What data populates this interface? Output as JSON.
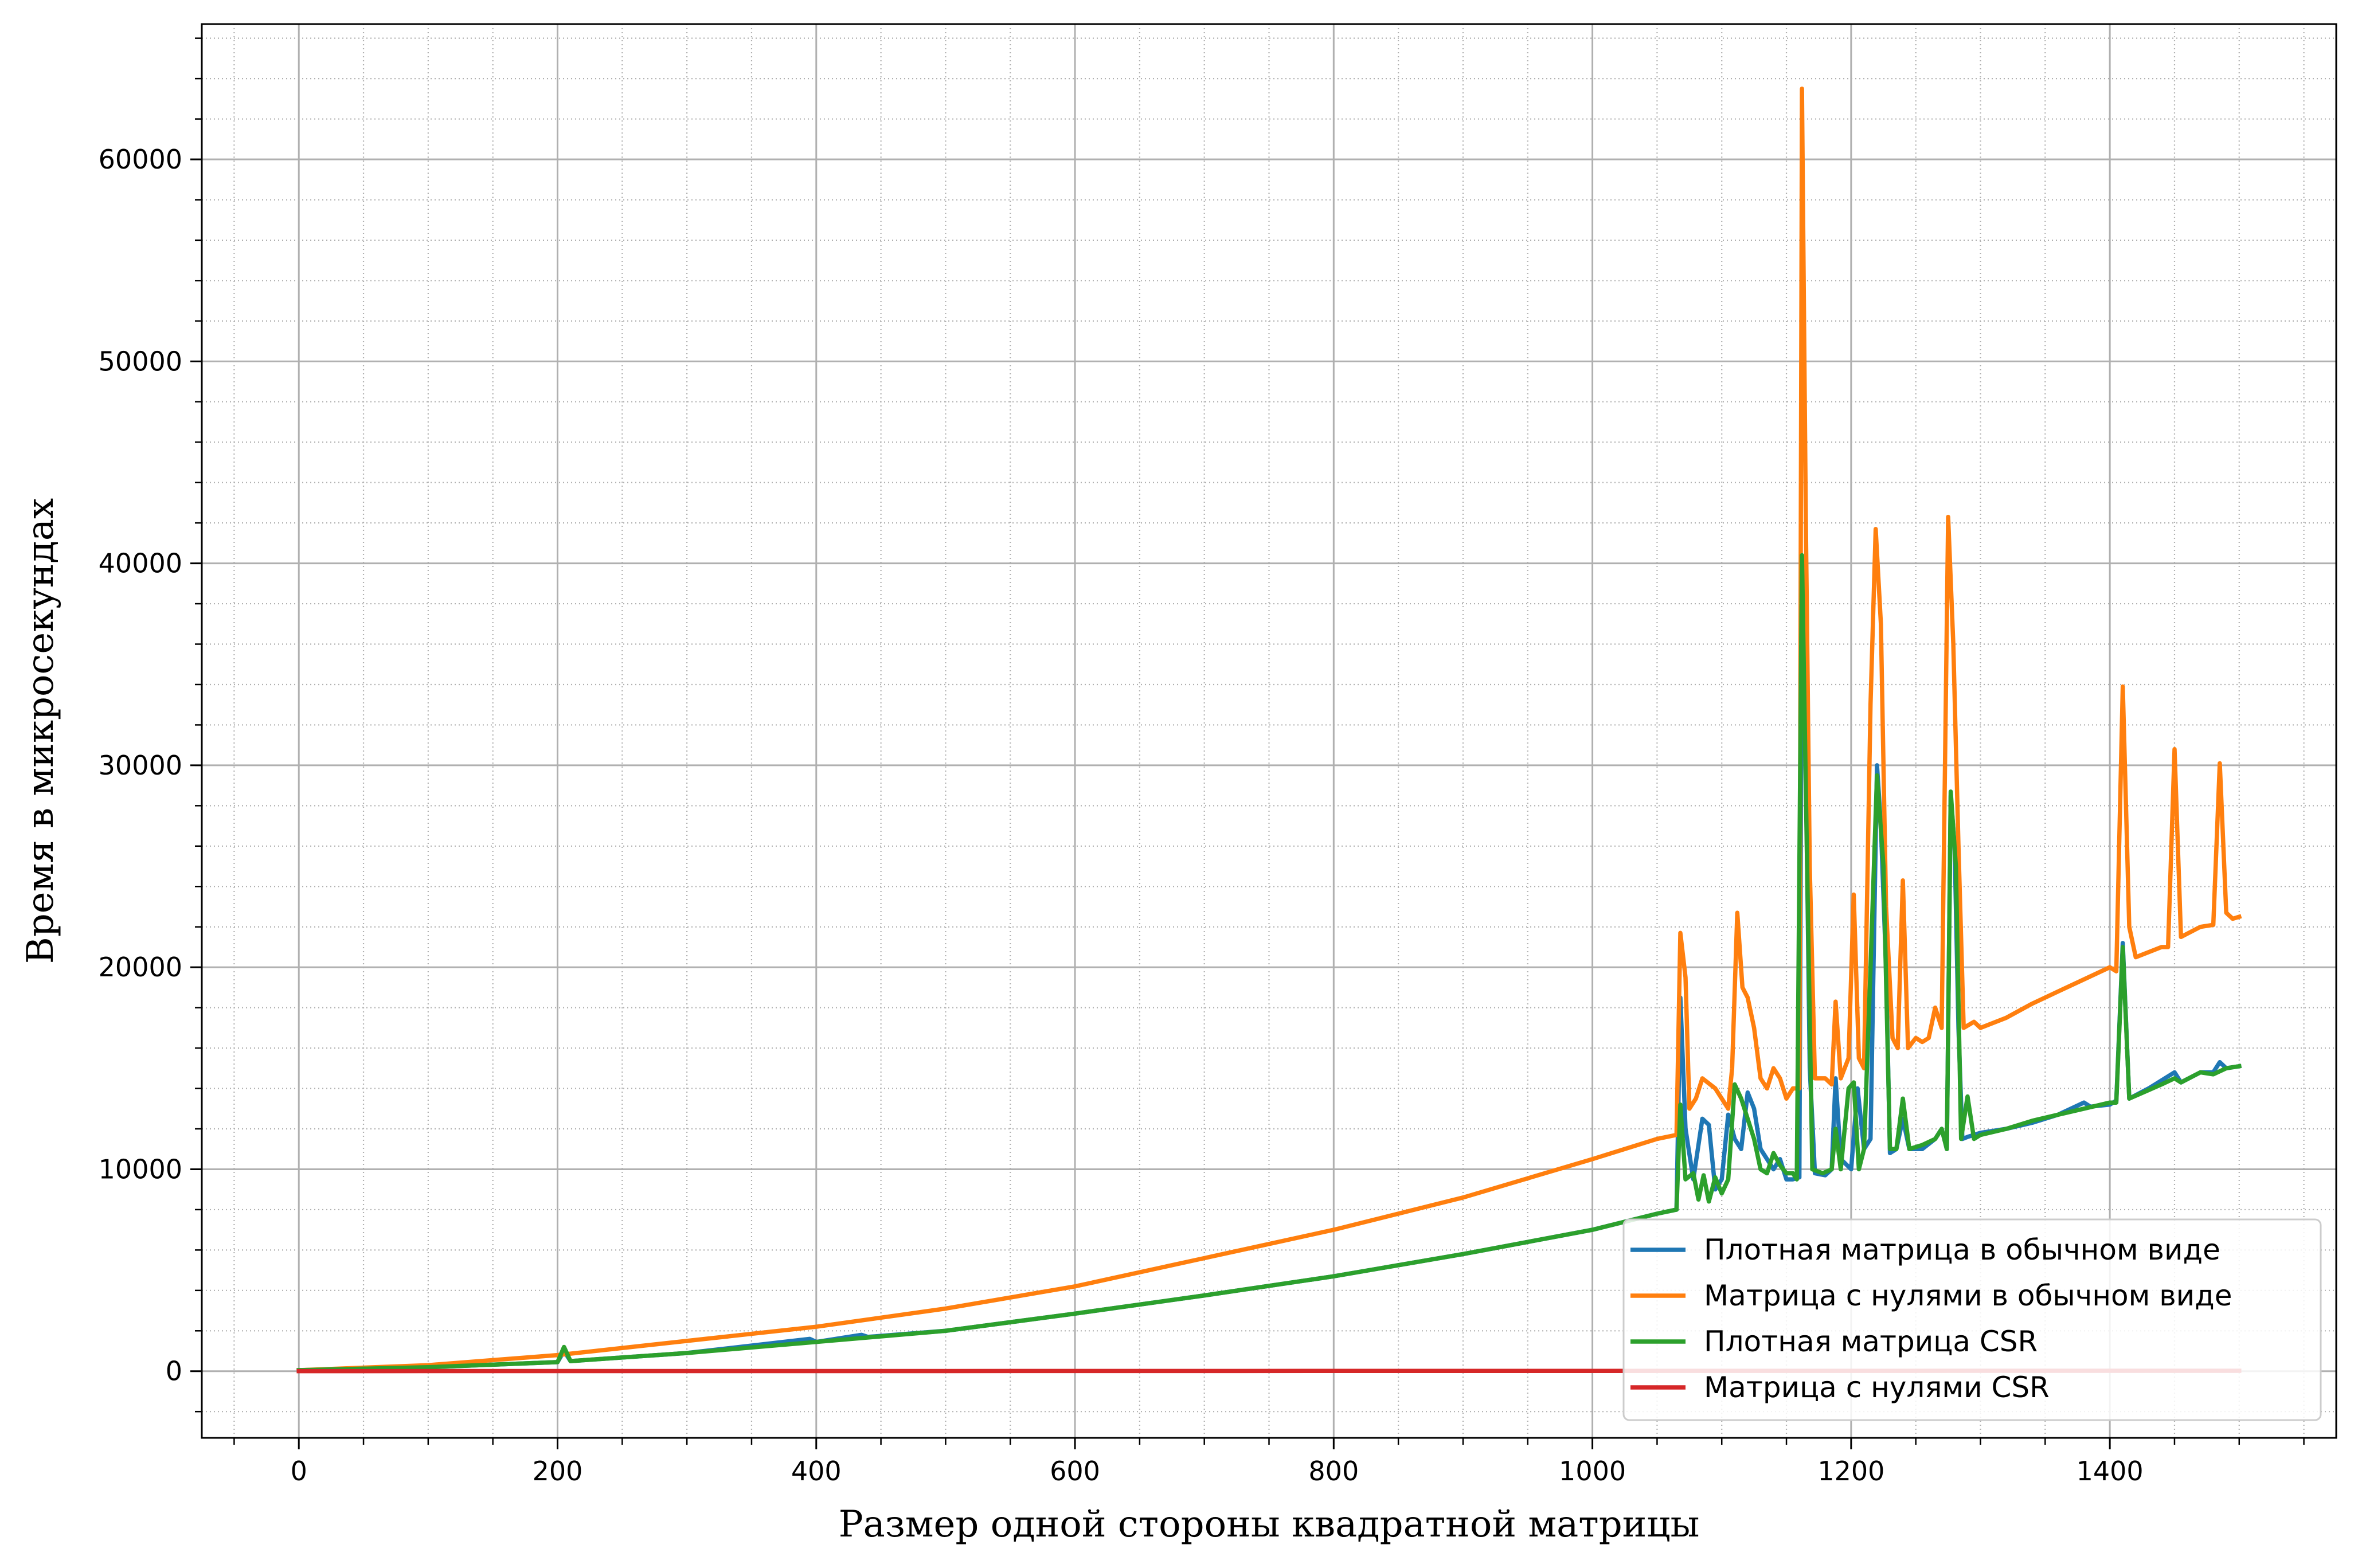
{
  "chart_data": {
    "type": "line",
    "xlabel": "Размер одной стороны квадратной матрицы",
    "ylabel": "Время в микросекундах",
    "xlim": [
      -75,
      1575
    ],
    "ylim": [
      -3300,
      66700
    ],
    "x_major_ticks": [
      0,
      200,
      400,
      600,
      800,
      1000,
      1200,
      1400
    ],
    "x_tick_labels": [
      "0",
      "200",
      "400",
      "600",
      "800",
      "1000",
      "1200",
      "1400"
    ],
    "x_minor_step": 50,
    "y_major_ticks": [
      0,
      10000,
      20000,
      30000,
      40000,
      50000,
      60000
    ],
    "y_tick_labels": [
      "0",
      "10000",
      "20000",
      "30000",
      "40000",
      "50000",
      "60000"
    ],
    "y_minor_step": 2000,
    "grid": {
      "major": "solid",
      "minor": "dotted"
    },
    "legend_position": "bottom-right",
    "series": [
      {
        "name": "Плотная матрица в обычном виде",
        "color": "#1f77b4",
        "points": [
          [
            0,
            50
          ],
          [
            100,
            200
          ],
          [
            200,
            450
          ],
          [
            205,
            1000
          ],
          [
            210,
            500
          ],
          [
            300,
            900
          ],
          [
            395,
            1600
          ],
          [
            400,
            1450
          ],
          [
            435,
            1800
          ],
          [
            440,
            1700
          ],
          [
            500,
            2000
          ],
          [
            600,
            2850
          ],
          [
            700,
            3750
          ],
          [
            800,
            4700
          ],
          [
            900,
            5800
          ],
          [
            1000,
            7000
          ],
          [
            1050,
            7800
          ],
          [
            1065,
            8000
          ],
          [
            1068,
            18500
          ],
          [
            1072,
            12000
          ],
          [
            1078,
            9500
          ],
          [
            1085,
            12500
          ],
          [
            1090,
            12200
          ],
          [
            1095,
            9000
          ],
          [
            1100,
            9500
          ],
          [
            1105,
            12700
          ],
          [
            1110,
            11500
          ],
          [
            1115,
            11000
          ],
          [
            1120,
            13800
          ],
          [
            1125,
            13000
          ],
          [
            1130,
            11000
          ],
          [
            1135,
            10500
          ],
          [
            1140,
            10000
          ],
          [
            1145,
            10500
          ],
          [
            1150,
            9500
          ],
          [
            1155,
            9500
          ],
          [
            1160,
            9600
          ],
          [
            1162,
            40000
          ],
          [
            1165,
            30000
          ],
          [
            1168,
            15000
          ],
          [
            1172,
            9800
          ],
          [
            1180,
            9700
          ],
          [
            1185,
            10000
          ],
          [
            1188,
            14500
          ],
          [
            1192,
            10500
          ],
          [
            1200,
            10000
          ],
          [
            1205,
            14000
          ],
          [
            1210,
            11000
          ],
          [
            1215,
            11500
          ],
          [
            1220,
            30000
          ],
          [
            1223,
            27000
          ],
          [
            1227,
            20000
          ],
          [
            1230,
            10800
          ],
          [
            1235,
            11000
          ],
          [
            1240,
            12500
          ],
          [
            1245,
            11000
          ],
          [
            1255,
            11000
          ],
          [
            1265,
            11500
          ],
          [
            1270,
            12000
          ],
          [
            1274,
            11000
          ],
          [
            1277,
            28500
          ],
          [
            1280,
            26000
          ],
          [
            1283,
            17000
          ],
          [
            1286,
            11500
          ],
          [
            1290,
            11600
          ],
          [
            1300,
            11800
          ],
          [
            1320,
            12000
          ],
          [
            1340,
            12300
          ],
          [
            1360,
            12700
          ],
          [
            1380,
            13300
          ],
          [
            1385,
            13100
          ],
          [
            1400,
            13200
          ],
          [
            1405,
            13400
          ],
          [
            1410,
            21200
          ],
          [
            1415,
            13500
          ],
          [
            1430,
            14000
          ],
          [
            1450,
            14800
          ],
          [
            1455,
            14300
          ],
          [
            1470,
            14800
          ],
          [
            1480,
            14800
          ],
          [
            1485,
            15300
          ],
          [
            1490,
            15000
          ],
          [
            1500,
            15100
          ]
        ]
      },
      {
        "name": "Матрица с нулями в обычном виде",
        "color": "#ff7f0e",
        "points": [
          [
            0,
            50
          ],
          [
            100,
            300
          ],
          [
            200,
            800
          ],
          [
            300,
            1500
          ],
          [
            400,
            2200
          ],
          [
            500,
            3100
          ],
          [
            600,
            4200
          ],
          [
            700,
            5600
          ],
          [
            800,
            7000
          ],
          [
            900,
            8600
          ],
          [
            1000,
            10500
          ],
          [
            1050,
            11500
          ],
          [
            1065,
            11700
          ],
          [
            1068,
            21700
          ],
          [
            1072,
            19500
          ],
          [
            1075,
            13000
          ],
          [
            1080,
            13500
          ],
          [
            1085,
            14500
          ],
          [
            1095,
            14000
          ],
          [
            1100,
            13500
          ],
          [
            1105,
            13000
          ],
          [
            1108,
            15000
          ],
          [
            1112,
            22700
          ],
          [
            1116,
            19000
          ],
          [
            1120,
            18500
          ],
          [
            1125,
            17000
          ],
          [
            1130,
            14500
          ],
          [
            1135,
            14000
          ],
          [
            1140,
            15000
          ],
          [
            1145,
            14500
          ],
          [
            1150,
            13500
          ],
          [
            1155,
            14000
          ],
          [
            1160,
            14000
          ],
          [
            1162,
            63500
          ],
          [
            1165,
            42000
          ],
          [
            1168,
            25000
          ],
          [
            1172,
            14500
          ],
          [
            1180,
            14500
          ],
          [
            1185,
            14200
          ],
          [
            1188,
            18300
          ],
          [
            1192,
            14500
          ],
          [
            1198,
            15500
          ],
          [
            1202,
            23600
          ],
          [
            1206,
            15500
          ],
          [
            1210,
            15000
          ],
          [
            1215,
            33000
          ],
          [
            1219,
            41700
          ],
          [
            1223,
            37000
          ],
          [
            1227,
            23000
          ],
          [
            1232,
            16500
          ],
          [
            1236,
            16000
          ],
          [
            1240,
            24300
          ],
          [
            1244,
            16000
          ],
          [
            1250,
            16500
          ],
          [
            1255,
            16300
          ],
          [
            1260,
            16500
          ],
          [
            1265,
            18000
          ],
          [
            1270,
            17000
          ],
          [
            1275,
            42300
          ],
          [
            1279,
            36000
          ],
          [
            1283,
            26000
          ],
          [
            1287,
            17000
          ],
          [
            1295,
            17300
          ],
          [
            1300,
            17000
          ],
          [
            1320,
            17500
          ],
          [
            1340,
            18200
          ],
          [
            1360,
            18800
          ],
          [
            1380,
            19400
          ],
          [
            1400,
            20000
          ],
          [
            1405,
            19800
          ],
          [
            1410,
            33900
          ],
          [
            1415,
            22000
          ],
          [
            1420,
            20500
          ],
          [
            1440,
            21000
          ],
          [
            1445,
            21000
          ],
          [
            1450,
            30800
          ],
          [
            1455,
            21500
          ],
          [
            1470,
            22000
          ],
          [
            1480,
            22100
          ],
          [
            1485,
            30100
          ],
          [
            1490,
            22700
          ],
          [
            1495,
            22400
          ],
          [
            1500,
            22500
          ]
        ]
      },
      {
        "name": "Плотная матрица CSR",
        "color": "#2ca02c",
        "points": [
          [
            0,
            50
          ],
          [
            100,
            200
          ],
          [
            200,
            450
          ],
          [
            205,
            1200
          ],
          [
            210,
            500
          ],
          [
            300,
            900
          ],
          [
            400,
            1450
          ],
          [
            500,
            2000
          ],
          [
            600,
            2850
          ],
          [
            700,
            3750
          ],
          [
            800,
            4700
          ],
          [
            900,
            5800
          ],
          [
            1000,
            7000
          ],
          [
            1050,
            7800
          ],
          [
            1065,
            8000
          ],
          [
            1068,
            13200
          ],
          [
            1072,
            9500
          ],
          [
            1078,
            9800
          ],
          [
            1082,
            8500
          ],
          [
            1086,
            9700
          ],
          [
            1090,
            8400
          ],
          [
            1095,
            9600
          ],
          [
            1100,
            8800
          ],
          [
            1105,
            9500
          ],
          [
            1110,
            14200
          ],
          [
            1115,
            13500
          ],
          [
            1120,
            12500
          ],
          [
            1125,
            11500
          ],
          [
            1130,
            10000
          ],
          [
            1135,
            9800
          ],
          [
            1140,
            10800
          ],
          [
            1145,
            10200
          ],
          [
            1150,
            9800
          ],
          [
            1155,
            9800
          ],
          [
            1158,
            9500
          ],
          [
            1162,
            40400
          ],
          [
            1166,
            25000
          ],
          [
            1170,
            10000
          ],
          [
            1178,
            9800
          ],
          [
            1185,
            10000
          ],
          [
            1188,
            12000
          ],
          [
            1192,
            10000
          ],
          [
            1198,
            14000
          ],
          [
            1202,
            14300
          ],
          [
            1206,
            10000
          ],
          [
            1210,
            11000
          ],
          [
            1215,
            20000
          ],
          [
            1220,
            29500
          ],
          [
            1225,
            25000
          ],
          [
            1230,
            11000
          ],
          [
            1235,
            11000
          ],
          [
            1240,
            13500
          ],
          [
            1245,
            11000
          ],
          [
            1255,
            11200
          ],
          [
            1265,
            11500
          ],
          [
            1270,
            12000
          ],
          [
            1274,
            11000
          ],
          [
            1277,
            28700
          ],
          [
            1281,
            25000
          ],
          [
            1285,
            11500
          ],
          [
            1290,
            13600
          ],
          [
            1295,
            11500
          ],
          [
            1300,
            11700
          ],
          [
            1320,
            12000
          ],
          [
            1340,
            12400
          ],
          [
            1360,
            12700
          ],
          [
            1380,
            13000
          ],
          [
            1400,
            13300
          ],
          [
            1405,
            13300
          ],
          [
            1410,
            21000
          ],
          [
            1415,
            13500
          ],
          [
            1440,
            14200
          ],
          [
            1450,
            14500
          ],
          [
            1455,
            14300
          ],
          [
            1470,
            14800
          ],
          [
            1480,
            14700
          ],
          [
            1490,
            15000
          ],
          [
            1500,
            15100
          ]
        ]
      },
      {
        "name": "Матрица с нулями CSR",
        "color": "#d62728",
        "points": [
          [
            0,
            5
          ],
          [
            200,
            6
          ],
          [
            400,
            8
          ],
          [
            600,
            10
          ],
          [
            800,
            12
          ],
          [
            1000,
            15
          ],
          [
            1200,
            18
          ],
          [
            1400,
            20
          ],
          [
            1500,
            22
          ]
        ]
      }
    ]
  }
}
